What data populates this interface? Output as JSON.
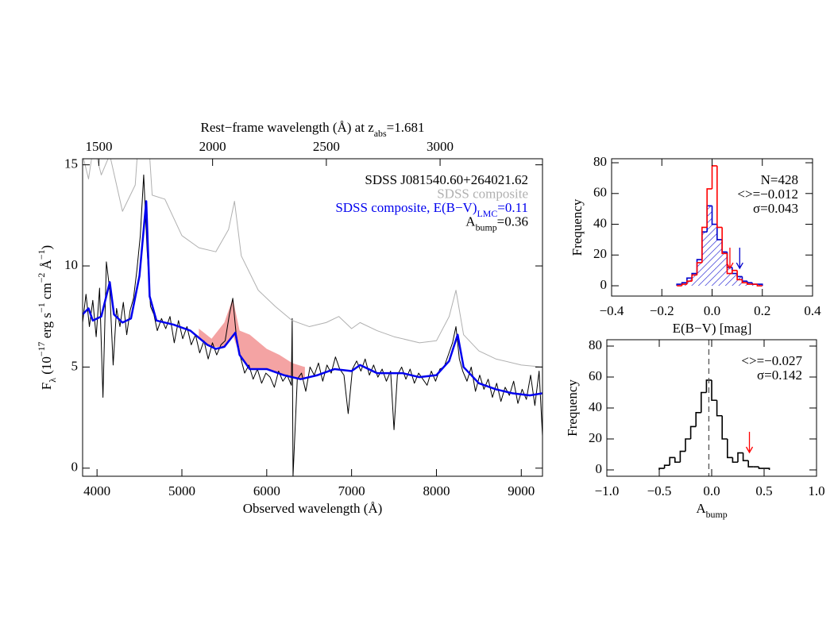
{
  "chart_data": [
    {
      "type": "line",
      "xlabel": "Observed wavelength (Å)",
      "ylabel": [
        {
          "text": "F"
        },
        {
          "text": "λ",
          "shift": "sub"
        },
        {
          "text": " (10"
        },
        {
          "text": "−17",
          "shift": "super"
        },
        {
          "text": " erg s"
        },
        {
          "text": "−1",
          "shift": "super"
        },
        {
          "text": " cm"
        },
        {
          "text": "−2",
          "shift": "super"
        },
        {
          "text": " Å"
        },
        {
          "text": "−1",
          "shift": "super"
        },
        {
          "text": ")"
        }
      ],
      "x2label": [
        {
          "text": "Rest−frame wavelength (Å) at z"
        },
        {
          "text": "abs",
          "shift": "sub"
        },
        {
          "text": "=1.681"
        }
      ],
      "xlim": [
        3830,
        9250
      ],
      "xticks": [
        4000,
        5000,
        6000,
        7000,
        8000,
        9000
      ],
      "x2lim": [
        1428.6,
        3450.2
      ],
      "x2ticks": [
        1500,
        2000,
        2500,
        3000
      ],
      "ylim": [
        -0.4,
        15.3
      ],
      "yticks": [
        0,
        5,
        10,
        15
      ],
      "bands": [
        {
          "color": "#f4a3a3",
          "x": [
            5200,
            5350,
            5500,
            5600,
            5680,
            5800,
            6000,
            6150,
            6300,
            6450
          ],
          "high": [
            6.9,
            6.4,
            7.2,
            8.4,
            6.8,
            6.6,
            5.9,
            5.6,
            5.2,
            5.0
          ],
          "low": [
            6.5,
            6.0,
            6.0,
            6.6,
            5.6,
            4.9,
            4.9,
            4.7,
            4.5,
            4.4
          ]
        }
      ],
      "series": [
        {
          "name": "SDSS J081540.60+264021.62",
          "color": "#000000",
          "width": 1,
          "x": [
            3830,
            3870,
            3910,
            3950,
            3990,
            4030,
            4070,
            4110,
            4150,
            4190,
            4230,
            4270,
            4310,
            4350,
            4390,
            4430,
            4470,
            4510,
            4550,
            4590,
            4630,
            4670,
            4710,
            4760,
            4810,
            4860,
            4910,
            4960,
            5010,
            5060,
            5110,
            5160,
            5210,
            5260,
            5310,
            5360,
            5410,
            5460,
            5510,
            5560,
            5600,
            5640,
            5690,
            5740,
            5790,
            5840,
            5890,
            5940,
            5990,
            6040,
            6090,
            6140,
            6190,
            6240,
            6290,
            6300,
            6310,
            6360,
            6410,
            6460,
            6510,
            6560,
            6610,
            6660,
            6710,
            6760,
            6810,
            6860,
            6910,
            6960,
            7010,
            7060,
            7110,
            7160,
            7210,
            7260,
            7310,
            7360,
            7410,
            7460,
            7500,
            7540,
            7590,
            7640,
            7690,
            7740,
            7790,
            7840,
            7890,
            7940,
            7990,
            8040,
            8090,
            8140,
            8190,
            8230,
            8270,
            8310,
            8360,
            8410,
            8460,
            8510,
            8560,
            8610,
            8660,
            8710,
            8760,
            8810,
            8860,
            8910,
            8960,
            9010,
            9060,
            9110,
            9160,
            9210,
            9250
          ],
          "values": [
            7.2,
            8.6,
            7.0,
            8.3,
            6.5,
            8.9,
            3.5,
            10.2,
            8.8,
            5.1,
            7.9,
            7.0,
            8.2,
            6.6,
            7.8,
            8.4,
            9.8,
            11.5,
            14.5,
            10.8,
            8.0,
            7.6,
            6.8,
            7.4,
            6.9,
            7.5,
            6.2,
            7.3,
            6.4,
            7.0,
            6.1,
            6.6,
            5.7,
            6.3,
            5.4,
            6.2,
            5.6,
            6.1,
            6.3,
            7.6,
            8.4,
            6.6,
            5.5,
            4.7,
            5.1,
            4.4,
            4.9,
            4.2,
            4.7,
            4.5,
            4.0,
            4.8,
            4.3,
            4.6,
            4.1,
            7.4,
            -0.4,
            4.4,
            4.7,
            3.8,
            5.0,
            4.6,
            5.2,
            4.3,
            5.1,
            4.7,
            5.5,
            4.9,
            4.6,
            2.7,
            4.9,
            5.3,
            4.8,
            5.4,
            4.6,
            5.1,
            4.5,
            4.9,
            4.3,
            4.8,
            1.9,
            4.6,
            5.0,
            4.4,
            4.9,
            4.2,
            4.7,
            4.4,
            4.1,
            4.8,
            4.3,
            4.9,
            5.0,
            5.6,
            6.2,
            7.0,
            5.4,
            4.8,
            4.3,
            5.0,
            3.8,
            4.6,
            3.9,
            4.4,
            3.5,
            4.2,
            3.3,
            4.0,
            3.6,
            4.3,
            3.2,
            3.9,
            3.4,
            4.6,
            3.1,
            4.8,
            1.6
          ]
        },
        {
          "name": "SDSS composite",
          "color": "#b0b0b0",
          "width": 1,
          "x": [
            3830,
            3900,
            3960,
            4050,
            4150,
            4300,
            4450,
            4550,
            4650,
            4800,
            5000,
            5200,
            5400,
            5550,
            5620,
            5700,
            5900,
            6100,
            6300,
            6500,
            6700,
            6850,
            7000,
            7100,
            7300,
            7500,
            7800,
            8000,
            8150,
            8230,
            8320,
            8500,
            8700,
            9000,
            9250
          ],
          "values": [
            15.5,
            14.3,
            16,
            14.5,
            15.5,
            12.7,
            14,
            20,
            13.5,
            13.3,
            11.5,
            10.9,
            10.7,
            11.8,
            13.2,
            10.5,
            8.8,
            8.0,
            7.3,
            7.0,
            7.2,
            7.5,
            6.9,
            7.2,
            6.8,
            6.5,
            6.2,
            6.3,
            7.5,
            8.8,
            6.6,
            5.8,
            5.4,
            5.1,
            5.0
          ]
        },
        {
          "name_parts": [
            {
              "text": "SDSS composite, E(B−V)"
            },
            {
              "text": "LMC",
              "shift": "sub"
            },
            {
              "text": "=0.11"
            }
          ],
          "color": "#0000ee",
          "width": 2.5,
          "x": [
            3830,
            3900,
            3950,
            4050,
            4150,
            4200,
            4300,
            4400,
            4500,
            4580,
            4620,
            4700,
            4900,
            5100,
            5300,
            5400,
            5500,
            5630,
            5680,
            5800,
            6000,
            6200,
            6400,
            6600,
            6800,
            7000,
            7100,
            7300,
            7600,
            7800,
            8000,
            8150,
            8250,
            8320,
            8500,
            8700,
            8900,
            9100,
            9250
          ],
          "values": [
            7.6,
            7.9,
            7.3,
            7.5,
            9.2,
            7.6,
            7.2,
            7.4,
            9.5,
            13.2,
            8.5,
            7.3,
            7.1,
            6.8,
            6.1,
            5.9,
            6.0,
            6.7,
            5.6,
            4.9,
            4.9,
            4.6,
            4.4,
            4.6,
            4.9,
            4.8,
            5.1,
            4.7,
            4.7,
            4.5,
            4.6,
            5.3,
            6.6,
            5.0,
            4.2,
            3.9,
            3.7,
            3.6,
            3.7
          ]
        }
      ],
      "annotation": [
        {
          "text": "A"
        },
        {
          "text": "bump",
          "shift": "sub"
        },
        {
          "text": "=0.36"
        }
      ]
    },
    {
      "type": "histogram",
      "xlabel": "E(B−V) [mag]",
      "ylabel": "Frequency",
      "xlim": [
        -0.4,
        0.4
      ],
      "xticks": [
        {
          "value": -0.4,
          "label": "−0.4"
        },
        {
          "value": -0.2,
          "label": "−0.2"
        },
        {
          "value": 0,
          "label": "0.0"
        },
        0.2,
        0.4
      ],
      "ylim": [
        -6.7,
        82.6
      ],
      "yticks": [
        0,
        20,
        40,
        60,
        80
      ],
      "bins": [
        -0.14,
        -0.12,
        -0.1,
        -0.08,
        -0.06,
        -0.04,
        -0.02,
        0.0,
        0.02,
        0.04,
        0.06,
        0.08,
        0.1,
        0.12,
        0.14,
        0.16,
        0.18,
        0.2
      ],
      "series": [
        {
          "color": "#0000cc",
          "hatch": true,
          "values": [
            1,
            2,
            5,
            8,
            17,
            35,
            52,
            40,
            30,
            22,
            12,
            8,
            6,
            3,
            2,
            1,
            1
          ]
        },
        {
          "color": "#ff0000",
          "values": [
            0,
            1,
            3,
            7,
            15,
            38,
            63,
            78,
            38,
            21,
            8,
            10,
            4,
            2,
            1,
            1,
            0
          ]
        }
      ],
      "arrows": [
        {
          "x": 0.071,
          "color": "#ff0000"
        },
        {
          "x": 0.11,
          "color": "#0000cc"
        }
      ],
      "annotations": [
        "N=428",
        "<>=−0.012",
        "σ=0.043"
      ]
    },
    {
      "type": "histogram",
      "xlabel": [
        {
          "text": "A"
        },
        {
          "text": "bump",
          "shift": "sub"
        }
      ],
      "ylabel": "Frequency",
      "xlim": [
        -1.0,
        1.0
      ],
      "xticks": [
        {
          "value": -1,
          "label": "−1.0"
        },
        {
          "value": -0.5,
          "label": "−0.5"
        },
        {
          "value": 0,
          "label": "0.0"
        },
        0.5,
        {
          "value": 1,
          "label": "1.0"
        }
      ],
      "ylim": [
        -4.1,
        84.1
      ],
      "yticks": [
        0,
        20,
        40,
        60,
        80
      ],
      "bins": [
        -0.5,
        -0.45,
        -0.4,
        -0.35,
        -0.3,
        -0.25,
        -0.2,
        -0.15,
        -0.1,
        -0.05,
        0.0,
        0.05,
        0.1,
        0.15,
        0.2,
        0.25,
        0.3,
        0.35,
        0.4,
        0.45,
        0.5,
        0.55
      ],
      "series": [
        {
          "color": "#000000",
          "values": [
            1,
            3,
            8,
            5,
            12,
            20,
            28,
            37,
            50,
            58,
            45,
            35,
            20,
            8,
            5,
            11,
            6,
            2,
            2,
            1,
            1
          ]
        }
      ],
      "vlines": [
        {
          "x": -0.027,
          "dash": true
        }
      ],
      "arrows": [
        {
          "x": 0.36,
          "color": "#ff0000"
        }
      ],
      "annotations": [
        "<>=−0.027",
        "σ=0.142"
      ]
    }
  ]
}
